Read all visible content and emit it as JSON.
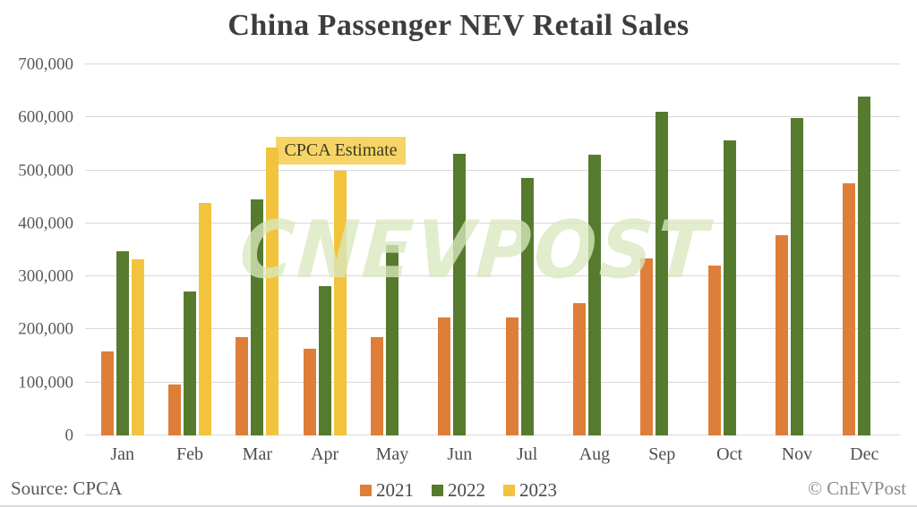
{
  "chart_data": {
    "type": "bar",
    "title": "China Passenger NEV Retail Sales",
    "categories": [
      "Jan",
      "Feb",
      "Mar",
      "Apr",
      "May",
      "Jun",
      "Jul",
      "Aug",
      "Sep",
      "Oct",
      "Nov",
      "Dec"
    ],
    "series": [
      {
        "name": "2021",
        "color": "#DF7E39",
        "values": [
          158000,
          97000,
          185000,
          163000,
          185000,
          223000,
          222000,
          250000,
          334000,
          321000,
          378000,
          475000
        ]
      },
      {
        "name": "2022",
        "color": "#567B2F",
        "values": [
          347000,
          272000,
          445000,
          282000,
          360000,
          532000,
          486000,
          530000,
          611000,
          556000,
          598000,
          640000
        ]
      },
      {
        "name": "2023",
        "color": "#F2C33C",
        "values": [
          332000,
          439000,
          543000,
          500000,
          null,
          null,
          null,
          null,
          null,
          null,
          null,
          null
        ]
      }
    ],
    "ylim": [
      0,
      700000
    ],
    "ytick_step": 100000,
    "ytick_labels": [
      "0",
      "100,000",
      "200,000",
      "300,000",
      "400,000",
      "500,000",
      "600,000",
      "700,000"
    ],
    "grid": "horizontal",
    "legend_position": "bottom-center",
    "annotation": {
      "text": "CPCA Estimate",
      "target": "Apr 2023 bar",
      "bg_color": "#F6D467"
    },
    "watermark": "CnEVPost"
  },
  "footer": {
    "source": "Source: CPCA",
    "copyright": "© CnEVPost"
  }
}
